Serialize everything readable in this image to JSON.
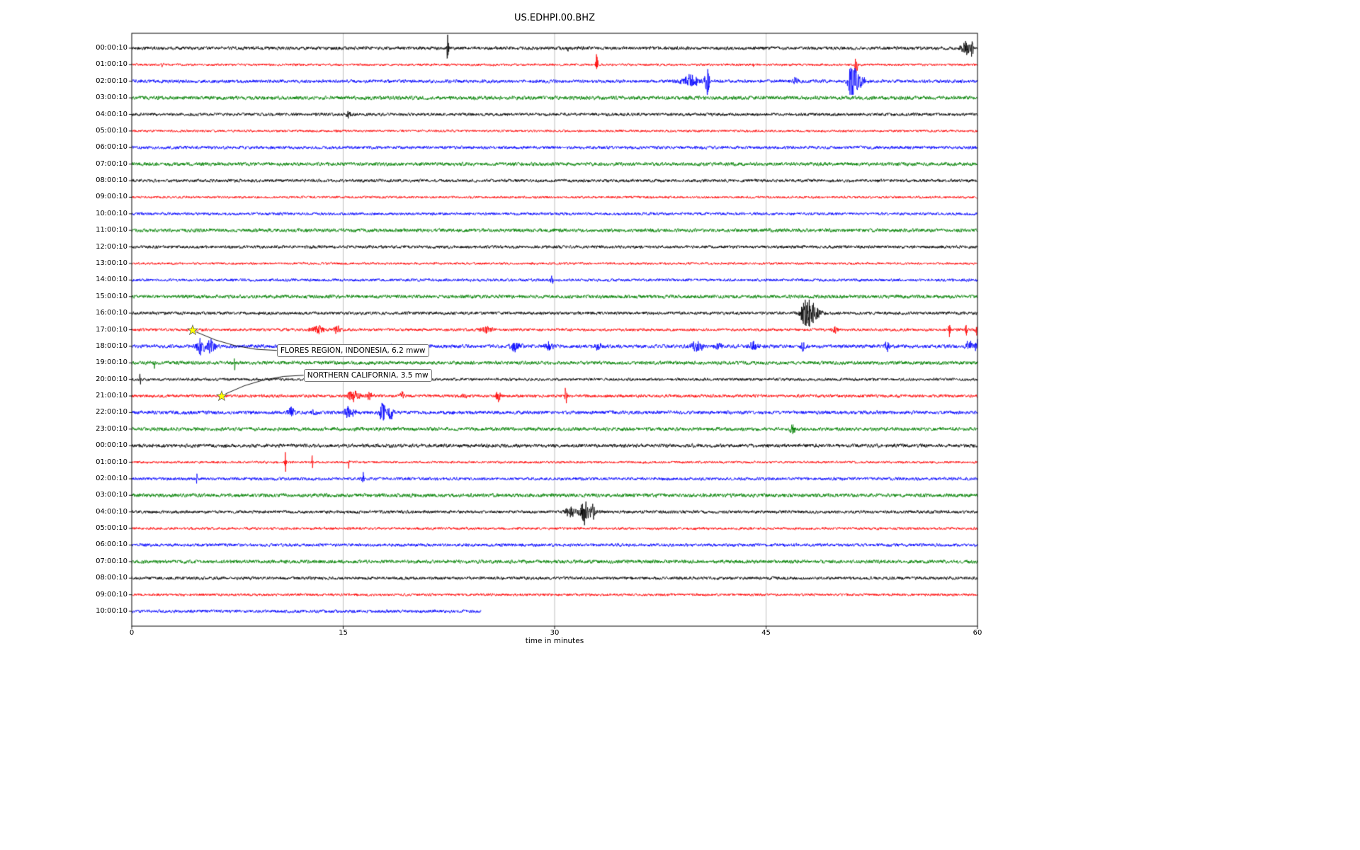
{
  "title": "US.EDHPI.00.BHZ",
  "xlabel": "time in minutes",
  "chart_data": {
    "type": "line",
    "subtype": "seismic-dayplot-helicorder",
    "title": "US.EDHPI.00.BHZ",
    "xlabel": "time in minutes",
    "x_range": [
      0,
      60
    ],
    "x_ticks": [
      0,
      15,
      30,
      45,
      60
    ],
    "grid": true,
    "grid_color": "#b0b0b0",
    "trace_color_cycle": [
      "#000000",
      "#ff0000",
      "#0000ff",
      "#008000"
    ],
    "rows": [
      {
        "label": "00:00:10",
        "color": "#000000",
        "noise": 1.4,
        "end_min": 60,
        "events": [
          {
            "t": 2.5,
            "amp": 3,
            "sigma": 0.08
          },
          {
            "t": 22.4,
            "amp": 16,
            "sigma": 0.05
          },
          {
            "t": 30.9,
            "amp": 2.5,
            "sigma": 0.08
          },
          {
            "t": 59.2,
            "amp": 7,
            "sigma": 0.25
          },
          {
            "t": 59.6,
            "amp": 9,
            "sigma": 0.08
          }
        ]
      },
      {
        "label": "01:00:10",
        "color": "#ff0000",
        "noise": 1.0,
        "end_min": 60,
        "events": [
          {
            "t": 2.2,
            "amp": 3,
            "sigma": 0.05
          },
          {
            "t": 33.0,
            "amp": 12,
            "sigma": 0.05
          },
          {
            "t": 44.1,
            "amp": 3,
            "sigma": 0.05
          },
          {
            "t": 51.4,
            "amp": 11,
            "sigma": 0.07
          }
        ]
      },
      {
        "label": "02:00:10",
        "color": "#0000ff",
        "noise": 1.4,
        "end_min": 60,
        "events": [
          {
            "t": 39.6,
            "amp": 6,
            "sigma": 0.5
          },
          {
            "t": 40.8,
            "amp": 15,
            "sigma": 0.12
          },
          {
            "t": 47.1,
            "amp": 3,
            "sigma": 0.15
          },
          {
            "t": 51.1,
            "amp": 16,
            "sigma": 0.2
          },
          {
            "t": 51.6,
            "amp": 6,
            "sigma": 0.3
          }
        ]
      },
      {
        "label": "03:00:10",
        "color": "#008000",
        "noise": 1.6,
        "end_min": 60,
        "events": []
      },
      {
        "label": "04:00:10",
        "color": "#000000",
        "noise": 1.3,
        "end_min": 60,
        "events": [
          {
            "t": 15.4,
            "amp": 4,
            "sigma": 0.12
          }
        ]
      },
      {
        "label": "05:00:10",
        "color": "#ff0000",
        "noise": 1.0,
        "end_min": 60,
        "events": []
      },
      {
        "label": "06:00:10",
        "color": "#0000ff",
        "noise": 1.3,
        "end_min": 60,
        "events": []
      },
      {
        "label": "07:00:10",
        "color": "#008000",
        "noise": 1.5,
        "end_min": 60,
        "events": []
      },
      {
        "label": "08:00:10",
        "color": "#000000",
        "noise": 1.3,
        "end_min": 60,
        "events": []
      },
      {
        "label": "09:00:10",
        "color": "#ff0000",
        "noise": 1.0,
        "end_min": 60,
        "events": []
      },
      {
        "label": "10:00:10",
        "color": "#0000ff",
        "noise": 1.2,
        "end_min": 60,
        "events": []
      },
      {
        "label": "11:00:10",
        "color": "#008000",
        "noise": 1.5,
        "end_min": 60,
        "events": []
      },
      {
        "label": "12:00:10",
        "color": "#000000",
        "noise": 1.3,
        "end_min": 60,
        "events": []
      },
      {
        "label": "13:00:10",
        "color": "#ff0000",
        "noise": 1.0,
        "end_min": 60,
        "events": []
      },
      {
        "label": "14:00:10",
        "color": "#0000ff",
        "noise": 1.2,
        "end_min": 60,
        "events": [
          {
            "t": 29.8,
            "amp": 4,
            "sigma": 0.07
          }
        ]
      },
      {
        "label": "15:00:10",
        "color": "#008000",
        "noise": 1.5,
        "end_min": 60,
        "events": []
      },
      {
        "label": "16:00:10",
        "color": "#000000",
        "noise": 1.3,
        "end_min": 60,
        "events": [
          {
            "t": 47.9,
            "amp": 13,
            "sigma": 0.3
          },
          {
            "t": 48.3,
            "amp": 6,
            "sigma": 0.4
          }
        ]
      },
      {
        "label": "17:00:10",
        "color": "#ff0000",
        "noise": 1.2,
        "end_min": 60,
        "events": [
          {
            "t": 13.2,
            "amp": 4,
            "sigma": 0.35
          },
          {
            "t": 14.5,
            "amp": 4,
            "sigma": 0.2
          },
          {
            "t": 25.1,
            "amp": 4,
            "sigma": 0.3
          },
          {
            "t": 49.9,
            "amp": 3,
            "sigma": 0.15
          },
          {
            "t": 58.0,
            "amp": 8,
            "sigma": 0.05
          },
          {
            "t": 59.2,
            "amp": 9,
            "sigma": 0.05
          },
          {
            "t": 60,
            "amp": 6,
            "sigma": 0.1
          }
        ]
      },
      {
        "label": "18:00:10",
        "color": "#0000ff",
        "noise": 1.5,
        "end_min": 60,
        "events": [
          {
            "t": 4.9,
            "amp": 9,
            "sigma": 0.2
          },
          {
            "t": 5.6,
            "amp": 6,
            "sigma": 0.25
          },
          {
            "t": 27.2,
            "amp": 6,
            "sigma": 0.25
          },
          {
            "t": 29.6,
            "amp": 4,
            "sigma": 0.2
          },
          {
            "t": 33.1,
            "amp": 3,
            "sigma": 0.2
          },
          {
            "t": 40.1,
            "amp": 5,
            "sigma": 0.3
          },
          {
            "t": 41.6,
            "amp": 4,
            "sigma": 0.2
          },
          {
            "t": 44.1,
            "amp": 4,
            "sigma": 0.25
          },
          {
            "t": 47.6,
            "amp": 5,
            "sigma": 0.2
          },
          {
            "t": 53.6,
            "amp": 5,
            "sigma": 0.12
          },
          {
            "t": 59.4,
            "amp": 8,
            "sigma": 0.15
          },
          {
            "t": 60,
            "amp": 10,
            "sigma": 0.12
          }
        ]
      },
      {
        "label": "19:00:10",
        "color": "#008000",
        "noise": 1.5,
        "end_min": 60,
        "events": [
          {
            "t": 1.6,
            "amp": 7,
            "sigma": 0.04
          },
          {
            "t": 7.3,
            "amp": 8,
            "sigma": 0.04
          }
        ]
      },
      {
        "label": "20:00:10",
        "color": "#000000",
        "noise": 1.2,
        "end_min": 60,
        "events": [
          {
            "t": 0.6,
            "amp": 5,
            "sigma": 0.05
          }
        ]
      },
      {
        "label": "21:00:10",
        "color": "#ff0000",
        "noise": 1.3,
        "end_min": 60,
        "events": [
          {
            "t": 15.7,
            "amp": 5,
            "sigma": 0.3
          },
          {
            "t": 16.9,
            "amp": 4,
            "sigma": 0.2
          },
          {
            "t": 19.2,
            "amp": 4,
            "sigma": 0.12
          },
          {
            "t": 23.6,
            "amp": 3,
            "sigma": 0.1
          },
          {
            "t": 26.0,
            "amp": 5,
            "sigma": 0.15
          },
          {
            "t": 30.8,
            "amp": 12,
            "sigma": 0.05
          }
        ]
      },
      {
        "label": "22:00:10",
        "color": "#0000ff",
        "noise": 1.5,
        "end_min": 60,
        "events": [
          {
            "t": 11.3,
            "amp": 5,
            "sigma": 0.2
          },
          {
            "t": 12.9,
            "amp": 4,
            "sigma": 0.15
          },
          {
            "t": 15.4,
            "amp": 5,
            "sigma": 0.3
          },
          {
            "t": 17.8,
            "amp": 10,
            "sigma": 0.15
          },
          {
            "t": 18.4,
            "amp": 7,
            "sigma": 0.15
          }
        ]
      },
      {
        "label": "23:00:10",
        "color": "#008000",
        "noise": 1.5,
        "end_min": 60,
        "events": [
          {
            "t": 46.9,
            "amp": 6,
            "sigma": 0.12
          }
        ]
      },
      {
        "label": "00:00:10",
        "color": "#000000",
        "noise": 1.5,
        "end_min": 60,
        "events": []
      },
      {
        "label": "01:00:10",
        "color": "#ff0000",
        "noise": 1.0,
        "end_min": 60,
        "events": [
          {
            "t": 10.9,
            "amp": 11,
            "sigma": 0.04
          },
          {
            "t": 12.8,
            "amp": 8,
            "sigma": 0.04
          },
          {
            "t": 15.4,
            "amp": 7,
            "sigma": 0.04
          }
        ]
      },
      {
        "label": "02:00:10",
        "color": "#0000ff",
        "noise": 1.3,
        "end_min": 60,
        "events": [
          {
            "t": 4.6,
            "amp": 6,
            "sigma": 0.04
          },
          {
            "t": 16.4,
            "amp": 7,
            "sigma": 0.05
          }
        ]
      },
      {
        "label": "03:00:10",
        "color": "#008000",
        "noise": 1.6,
        "end_min": 60,
        "events": []
      },
      {
        "label": "04:00:10",
        "color": "#000000",
        "noise": 1.3,
        "end_min": 60,
        "events": [
          {
            "t": 31.1,
            "amp": 5,
            "sigma": 0.25
          },
          {
            "t": 32.1,
            "amp": 12,
            "sigma": 0.2
          },
          {
            "t": 32.7,
            "amp": 7,
            "sigma": 0.15
          }
        ]
      },
      {
        "label": "05:00:10",
        "color": "#ff0000",
        "noise": 1.1,
        "end_min": 60,
        "events": []
      },
      {
        "label": "06:00:10",
        "color": "#0000ff",
        "noise": 1.3,
        "end_min": 60,
        "events": []
      },
      {
        "label": "07:00:10",
        "color": "#008000",
        "noise": 1.5,
        "end_min": 60,
        "events": []
      },
      {
        "label": "08:00:10",
        "color": "#000000",
        "noise": 1.3,
        "end_min": 60,
        "events": []
      },
      {
        "label": "09:00:10",
        "color": "#ff0000",
        "noise": 1.1,
        "end_min": 60,
        "events": []
      },
      {
        "label": "10:00:10",
        "color": "#0000ff",
        "noise": 1.3,
        "end_min": 24.8,
        "events": []
      }
    ],
    "annotations": [
      {
        "text": "FLORES REGION, INDONESIA, 6.2 mww",
        "star_min": 4.3,
        "star_row": 17,
        "box_min": 10.3,
        "box_row": 18.25,
        "star_color": "#ffff00"
      },
      {
        "text": "NORTHERN CALIFORNIA, 3.5 mw",
        "star_min": 6.4,
        "star_row": 21,
        "box_min": 12.2,
        "box_row": 19.75,
        "star_color": "#ffff00"
      }
    ]
  }
}
